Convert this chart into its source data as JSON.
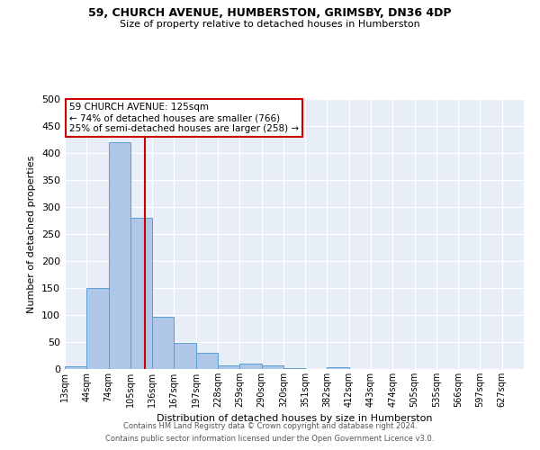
{
  "title1": "59, CHURCH AVENUE, HUMBERSTON, GRIMSBY, DN36 4DP",
  "title2": "Size of property relative to detached houses in Humberston",
  "xlabel": "Distribution of detached houses by size in Humberston",
  "ylabel": "Number of detached properties",
  "footnote1": "Contains HM Land Registry data © Crown copyright and database right 2024.",
  "footnote2": "Contains public sector information licensed under the Open Government Licence v3.0.",
  "annotation_line1": "59 CHURCH AVENUE: 125sqm",
  "annotation_line2": "← 74% of detached houses are smaller (766)",
  "annotation_line3": "25% of semi-detached houses are larger (258) →",
  "bar_labels": [
    "13sqm",
    "44sqm",
    "74sqm",
    "105sqm",
    "136sqm",
    "167sqm",
    "197sqm",
    "228sqm",
    "259sqm",
    "290sqm",
    "320sqm",
    "351sqm",
    "382sqm",
    "412sqm",
    "443sqm",
    "474sqm",
    "505sqm",
    "535sqm",
    "566sqm",
    "597sqm",
    "627sqm"
  ],
  "bar_values": [
    5,
    150,
    420,
    280,
    96,
    49,
    30,
    7,
    10,
    7,
    1,
    0,
    4,
    0,
    0,
    0,
    0,
    0,
    0,
    0,
    0
  ],
  "bar_color": "#aec6e8",
  "bar_edge_color": "#5a9fd4",
  "vline_color": "#cc0000",
  "vline_pos": 3.645,
  "ylim": [
    0,
    500
  ],
  "yticks": [
    0,
    50,
    100,
    150,
    200,
    250,
    300,
    350,
    400,
    450,
    500
  ],
  "bg_color": "#e8eef8",
  "annotation_box_color": "#cc0000",
  "fig_width": 6.0,
  "fig_height": 5.0,
  "dpi": 100
}
